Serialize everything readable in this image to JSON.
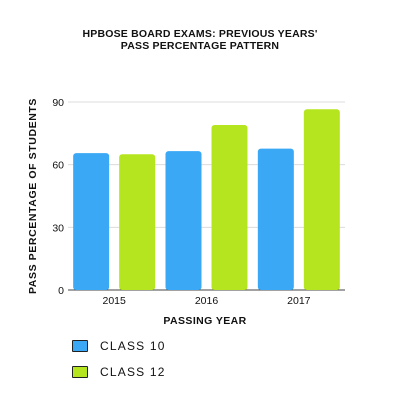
{
  "chart_data": {
    "type": "bar",
    "title_line1": "HPBOSE BOARD EXAMS: PREVIOUS YEARS'",
    "title_line2": "PASS PERCENTAGE PATTERN",
    "xlabel": "PASSING YEAR",
    "ylabel": "PASS PERCENTAGE OF STUDENTS",
    "categories": [
      "2015",
      "2016",
      "2017"
    ],
    "ylim": [
      0,
      90
    ],
    "yticks": [
      0,
      30,
      60,
      90
    ],
    "grid": true,
    "legend_position": "bottom-left",
    "series": [
      {
        "name": "CLASS 10",
        "color": "#3aa8f5",
        "values": [
          65.5,
          66.5,
          67.7
        ]
      },
      {
        "name": "CLASS 12",
        "color": "#b5e51f",
        "values": [
          65.0,
          79.0,
          86.5
        ]
      }
    ]
  }
}
